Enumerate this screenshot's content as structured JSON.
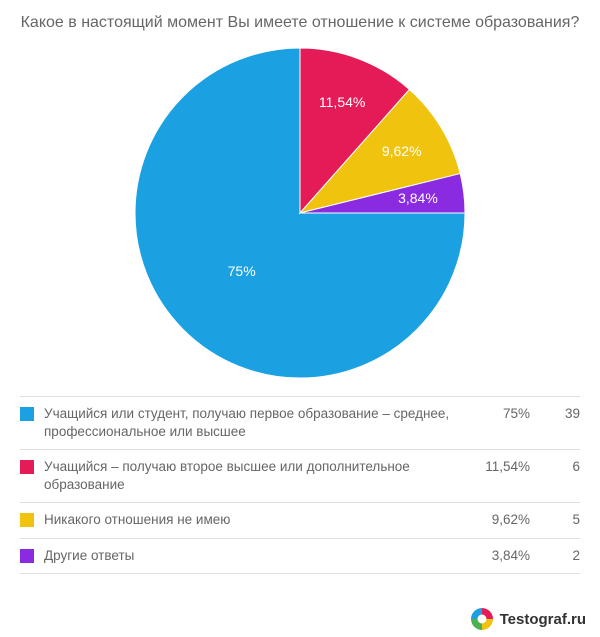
{
  "title": "Какое в настоящий момент Вы имеете отношение к системе образования?",
  "chart": {
    "type": "pie",
    "background_color": "#ffffff",
    "label_color": "#ffffff",
    "label_fontsize": 14,
    "slices": [
      {
        "label": "Учащийся или студент, получаю первое образование – среднее, профессиональное или высшее",
        "value": 75.0,
        "display_percent": "75%",
        "count": "39",
        "color": "#1ba1e2"
      },
      {
        "label": "Учащийся – получаю второе высшее или дополнительное образование",
        "value": 11.54,
        "display_percent": "11,54%",
        "count": "6",
        "color": "#e51b57"
      },
      {
        "label": "Никакого отношения не имею",
        "value": 9.62,
        "display_percent": "9,62%",
        "count": "5",
        "color": "#f0c30f"
      },
      {
        "label": "Другие ответы",
        "value": 3.84,
        "display_percent": "3,84%",
        "count": "2",
        "color": "#8a2be2"
      }
    ]
  },
  "legend": {
    "border_color": "#e0e0e0",
    "text_color": "#666666",
    "fontsize": 13.5
  },
  "footer": {
    "brand": "Testograf.ru",
    "logo_colors": [
      "#e51b57",
      "#f0c30f",
      "#4caf50",
      "#1ba1e2"
    ]
  }
}
